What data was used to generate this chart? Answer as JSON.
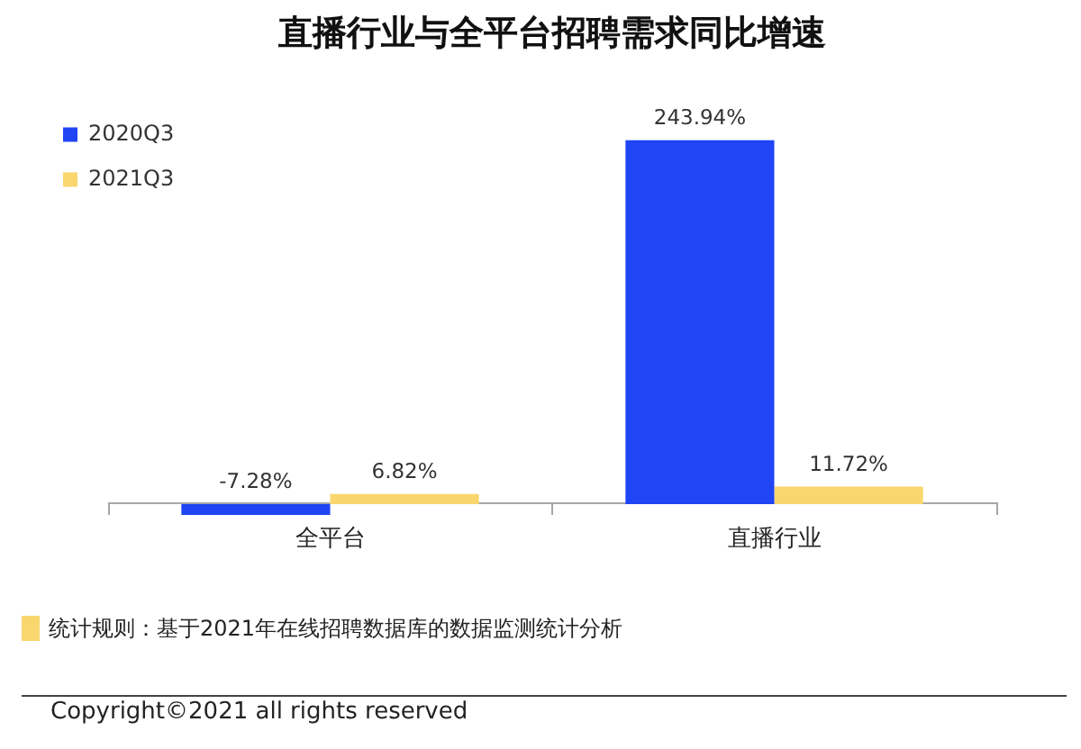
{
  "chart_data": {
    "type": "bar",
    "title": "直播行业与全平台招聘需求同比增速",
    "categories": [
      "全平台",
      "直播行业"
    ],
    "series": [
      {
        "name": "2020Q3",
        "color": "#1f45f5",
        "values": [
          -7.28,
          243.94
        ],
        "value_labels": [
          "-7.28%",
          "243.94%"
        ]
      },
      {
        "name": "2021Q3",
        "color": "#f9d66e",
        "values": [
          6.82,
          11.72
        ],
        "value_labels": [
          "6.82%",
          "11.72%"
        ]
      }
    ],
    "legend": "top left",
    "tick_labels": "x",
    "annotations": [
      "统计规则：基于2021年在线招聘数据库的数据监测统计分析",
      "Copyright©2021 all rights reserved"
    ]
  }
}
